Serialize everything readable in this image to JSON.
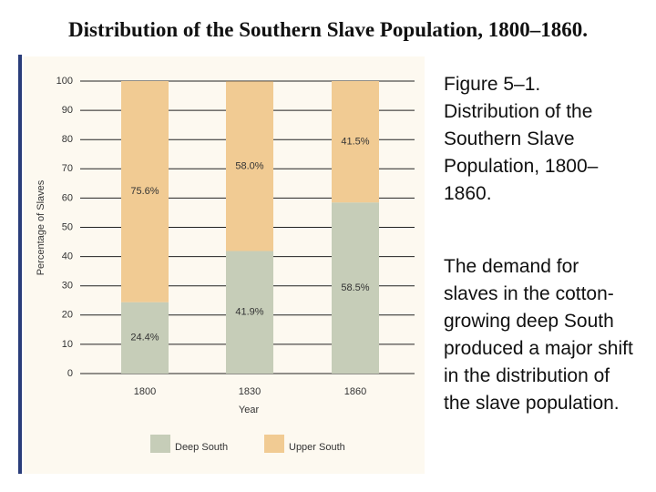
{
  "title": "Distribution of the Southern Slave Population, 1800–1860.",
  "caption": "Figure 5–1. Distribution of the Southern Slave Population, 1800–1860.",
  "body": "The demand for slaves in the cotton-growing deep South produced a major shift in the distribution of the slave population.",
  "chart_data": {
    "type": "stacked_bar",
    "categories": [
      "1800",
      "1830",
      "1860"
    ],
    "series": [
      {
        "name": "Deep South",
        "color": "#c6cdb8",
        "values": [
          24.4,
          41.9,
          58.5
        ],
        "value_labels": [
          "24.4%",
          "41.9%",
          "58.5%"
        ]
      },
      {
        "name": "Upper South",
        "color": "#f1cb93",
        "values": [
          75.6,
          58.0,
          41.5
        ],
        "value_labels": [
          "75.6%",
          "58.0%",
          "41.5%"
        ]
      }
    ],
    "ylim": [
      0,
      100
    ],
    "yticks": [
      0,
      10,
      20,
      30,
      40,
      50,
      60,
      70,
      80,
      90,
      100
    ],
    "ylabel": "Percentage of Slaves",
    "xlabel": "Year",
    "grid": true
  }
}
